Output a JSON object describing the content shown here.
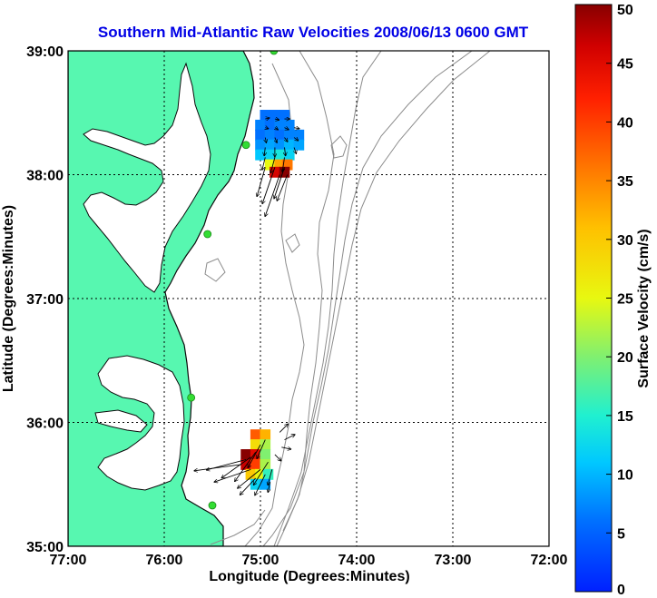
{
  "title": "Southern Mid-Atlantic Raw Velocities 2008/06/13 0600 GMT",
  "colors": {
    "title": "#0000e6",
    "land": "#57f7b0",
    "coast": "#0b0b0b",
    "bathymetry": "#8c8c8c",
    "grid": "#000000",
    "station": "#33dd33"
  },
  "map": {
    "xlabel": "Longitude (Degrees:Minutes)",
    "ylabel": "Latitude (Degrees:Minutes)",
    "lon_range": [
      -77,
      -72
    ],
    "lat_range": [
      35,
      39
    ],
    "lon_ticks": [
      "77:00",
      "76:00",
      "75:00",
      "74:00",
      "73:00",
      "72:00"
    ],
    "lat_ticks": [
      "39:00",
      "38:00",
      "37:00",
      "36:00",
      "35:00"
    ]
  },
  "colorbar": {
    "label": "Surface Velocity (cm/s)",
    "min": 0,
    "max": 50,
    "ticks": [
      "50",
      "45",
      "40",
      "35",
      "30",
      "25",
      "20",
      "15",
      "10",
      "5",
      "0"
    ]
  },
  "stations": [
    {
      "name": "",
      "lon": -74.86,
      "lat": 39.0
    },
    {
      "name": "",
      "lon": -75.15,
      "lat": 38.24
    },
    {
      "name": "",
      "lon": -75.55,
      "lat": 37.52
    },
    {
      "name": "",
      "lon": -75.72,
      "lat": 36.2
    },
    {
      "name": "",
      "lon": -75.5,
      "lat": 35.33
    }
  ],
  "velocity_cells_north": [
    {
      "lon": -74.95,
      "lat": 38.48,
      "v": 6
    },
    {
      "lon": -74.85,
      "lat": 38.48,
      "v": 6
    },
    {
      "lon": -74.75,
      "lat": 38.48,
      "v": 6
    },
    {
      "lon": -75.0,
      "lat": 38.4,
      "v": 7
    },
    {
      "lon": -74.9,
      "lat": 38.4,
      "v": 6
    },
    {
      "lon": -74.8,
      "lat": 38.4,
      "v": 7
    },
    {
      "lon": -74.7,
      "lat": 38.4,
      "v": 7
    },
    {
      "lon": -75.0,
      "lat": 38.32,
      "v": 6
    },
    {
      "lon": -74.9,
      "lat": 38.32,
      "v": 7
    },
    {
      "lon": -74.8,
      "lat": 38.32,
      "v": 6
    },
    {
      "lon": -74.7,
      "lat": 38.32,
      "v": 7
    },
    {
      "lon": -74.6,
      "lat": 38.32,
      "v": 7
    },
    {
      "lon": -75.0,
      "lat": 38.24,
      "v": 8
    },
    {
      "lon": -74.9,
      "lat": 38.24,
      "v": 9
    },
    {
      "lon": -74.8,
      "lat": 38.24,
      "v": 8
    },
    {
      "lon": -74.7,
      "lat": 38.24,
      "v": 10
    },
    {
      "lon": -74.6,
      "lat": 38.24,
      "v": 9
    },
    {
      "lon": -75.0,
      "lat": 38.16,
      "v": 11
    },
    {
      "lon": -74.9,
      "lat": 38.16,
      "v": 12
    },
    {
      "lon": -74.8,
      "lat": 38.16,
      "v": 14
    },
    {
      "lon": -74.7,
      "lat": 38.16,
      "v": 12
    },
    {
      "lon": -74.9,
      "lat": 38.08,
      "v": 25
    },
    {
      "lon": -74.8,
      "lat": 38.08,
      "v": 33
    },
    {
      "lon": -74.72,
      "lat": 38.08,
      "v": 36
    },
    {
      "lon": -74.85,
      "lat": 38.02,
      "v": 46
    },
    {
      "lon": -74.75,
      "lat": 38.02,
      "v": 50
    }
  ],
  "velocity_cells_south": [
    {
      "lon": -75.05,
      "lat": 35.9,
      "v": 38
    },
    {
      "lon": -74.95,
      "lat": 35.9,
      "v": 32
    },
    {
      "lon": -75.05,
      "lat": 35.82,
      "v": 28
    },
    {
      "lon": -74.95,
      "lat": 35.82,
      "v": 22
    },
    {
      "lon": -75.15,
      "lat": 35.74,
      "v": 50
    },
    {
      "lon": -75.05,
      "lat": 35.74,
      "v": 45
    },
    {
      "lon": -74.95,
      "lat": 35.74,
      "v": 20
    },
    {
      "lon": -75.15,
      "lat": 35.66,
      "v": 47
    },
    {
      "lon": -75.05,
      "lat": 35.66,
      "v": 40
    },
    {
      "lon": -74.95,
      "lat": 35.66,
      "v": 22
    },
    {
      "lon": -75.1,
      "lat": 35.58,
      "v": 30
    },
    {
      "lon": -75.0,
      "lat": 35.58,
      "v": 25
    },
    {
      "lon": -74.92,
      "lat": 35.58,
      "v": 16
    },
    {
      "lon": -75.05,
      "lat": 35.5,
      "v": 12
    },
    {
      "lon": -74.95,
      "lat": 35.5,
      "v": 9
    }
  ],
  "vectors": [
    {
      "lon": -74.95,
      "lat": 38.45,
      "u": 4,
      "v": 1
    },
    {
      "lon": -74.85,
      "lat": 38.45,
      "u": 4,
      "v": -1
    },
    {
      "lon": -74.75,
      "lat": 38.45,
      "u": 5,
      "v": 0
    },
    {
      "lon": -74.65,
      "lat": 38.38,
      "u": 5,
      "v": -1
    },
    {
      "lon": -74.75,
      "lat": 38.38,
      "u": 4,
      "v": -2
    },
    {
      "lon": -74.85,
      "lat": 38.38,
      "u": 3,
      "v": -2
    },
    {
      "lon": -74.95,
      "lat": 38.38,
      "u": 3,
      "v": -1
    },
    {
      "lon": -74.65,
      "lat": 38.3,
      "u": 4,
      "v": -3
    },
    {
      "lon": -74.75,
      "lat": 38.3,
      "u": 3,
      "v": -4
    },
    {
      "lon": -74.85,
      "lat": 38.3,
      "u": 2,
      "v": -5
    },
    {
      "lon": -74.95,
      "lat": 38.3,
      "u": 1,
      "v": -5
    },
    {
      "lon": -74.65,
      "lat": 38.22,
      "u": 2,
      "v": -6
    },
    {
      "lon": -74.75,
      "lat": 38.22,
      "u": 1,
      "v": -8
    },
    {
      "lon": -74.85,
      "lat": 38.22,
      "u": 0,
      "v": -9
    },
    {
      "lon": -74.95,
      "lat": 38.22,
      "u": -1,
      "v": -8
    },
    {
      "lon": -74.75,
      "lat": 38.14,
      "u": -2,
      "v": -14
    },
    {
      "lon": -74.85,
      "lat": 38.14,
      "u": -4,
      "v": -15
    },
    {
      "lon": -74.95,
      "lat": 38.14,
      "u": -3,
      "v": -12
    },
    {
      "lon": -74.75,
      "lat": 38.06,
      "u": -10,
      "v": -30
    },
    {
      "lon": -74.85,
      "lat": 38.06,
      "u": -12,
      "v": -35
    },
    {
      "lon": -74.95,
      "lat": 38.06,
      "u": -8,
      "v": -28
    },
    {
      "lon": -74.8,
      "lat": 38.0,
      "u": -14,
      "v": -40
    },
    {
      "lon": -74.72,
      "lat": 38.0,
      "u": -10,
      "v": -25
    },
    {
      "lon": -74.8,
      "lat": 35.92,
      "u": 8,
      "v": 8
    },
    {
      "lon": -74.75,
      "lat": 35.86,
      "u": 10,
      "v": 5
    },
    {
      "lon": -74.78,
      "lat": 35.8,
      "u": 9,
      "v": -2
    },
    {
      "lon": -74.85,
      "lat": 35.74,
      "u": 6,
      "v": -6
    },
    {
      "lon": -74.95,
      "lat": 35.86,
      "u": -8,
      "v": -18
    },
    {
      "lon": -75.0,
      "lat": 35.82,
      "u": -12,
      "v": -22
    },
    {
      "lon": -75.05,
      "lat": 35.76,
      "u": -20,
      "v": -28
    },
    {
      "lon": -75.1,
      "lat": 35.72,
      "u": -28,
      "v": -20
    },
    {
      "lon": -75.15,
      "lat": 35.7,
      "u": -38,
      "v": -10
    },
    {
      "lon": -75.2,
      "lat": 35.66,
      "u": -45,
      "v": -6
    },
    {
      "lon": -75.1,
      "lat": 35.62,
      "u": -35,
      "v": -12
    },
    {
      "lon": -75.0,
      "lat": 35.62,
      "u": -22,
      "v": -18
    },
    {
      "lon": -74.95,
      "lat": 35.58,
      "u": -10,
      "v": -20
    },
    {
      "lon": -75.05,
      "lat": 35.55,
      "u": -15,
      "v": -16
    },
    {
      "lon": -74.92,
      "lat": 35.68,
      "u": -14,
      "v": -22
    },
    {
      "lon": -74.88,
      "lat": 35.62,
      "u": -4,
      "v": -15
    },
    {
      "lon": -74.9,
      "lat": 35.52,
      "u": -2,
      "v": -10
    }
  ]
}
